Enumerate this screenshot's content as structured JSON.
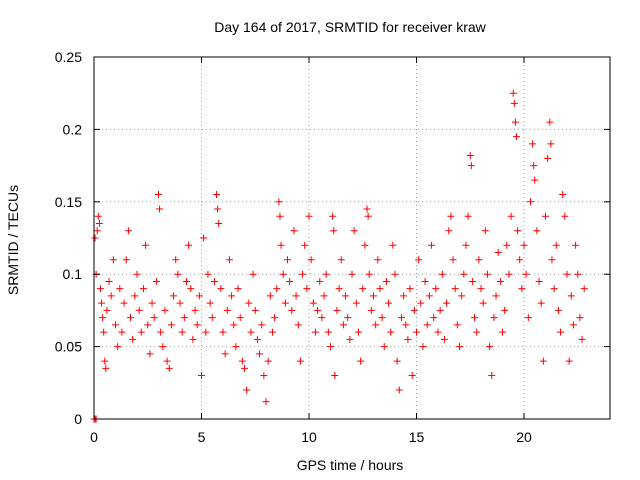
{
  "chart_data": {
    "type": "scatter",
    "title": "Day 164 of 2017, SRMTID for receiver kraw",
    "xlabel": "GPS time / hours",
    "ylabel": "SRMTID / TECUs",
    "xlim": [
      0,
      24
    ],
    "ylim": [
      0,
      0.25
    ],
    "xticks": [
      0,
      5,
      10,
      15,
      20
    ],
    "xtick_labels": [
      "0",
      "5",
      "10",
      "15",
      "20"
    ],
    "yticks": [
      0,
      0.05,
      0.1,
      0.15,
      0.2,
      0.25
    ],
    "ytick_labels": [
      "0",
      "0.05",
      "0.1",
      "0.15",
      "0.2",
      "0.25"
    ],
    "grid": true,
    "marker": "+",
    "color": "#ff0000",
    "series": [
      {
        "name": "SRMTID",
        "points": [
          [
            0.0,
            0.0
          ],
          [
            0.05,
            0.0
          ],
          [
            0.1,
            0.0
          ],
          [
            0.05,
            0.125
          ],
          [
            0.1,
            0.1
          ],
          [
            0.15,
            0.13
          ],
          [
            0.2,
            0.14
          ],
          [
            0.25,
            0.135
          ],
          [
            0.3,
            0.09
          ],
          [
            0.35,
            0.08
          ],
          [
            0.4,
            0.07
          ],
          [
            0.45,
            0.06
          ],
          [
            0.5,
            0.04
          ],
          [
            0.55,
            0.035
          ],
          [
            0.6,
            0.075
          ],
          [
            0.7,
            0.095
          ],
          [
            0.8,
            0.085
          ],
          [
            0.9,
            0.11
          ],
          [
            1.0,
            0.065
          ],
          [
            1.1,
            0.05
          ],
          [
            1.2,
            0.09
          ],
          [
            1.3,
            0.06
          ],
          [
            1.4,
            0.08
          ],
          [
            1.5,
            0.11
          ],
          [
            1.6,
            0.13
          ],
          [
            1.7,
            0.07
          ],
          [
            1.8,
            0.055
          ],
          [
            1.9,
            0.085
          ],
          [
            2.0,
            0.1
          ],
          [
            2.1,
            0.075
          ],
          [
            2.2,
            0.06
          ],
          [
            2.3,
            0.09
          ],
          [
            2.4,
            0.12
          ],
          [
            2.5,
            0.065
          ],
          [
            2.6,
            0.045
          ],
          [
            2.7,
            0.08
          ],
          [
            2.8,
            0.07
          ],
          [
            2.9,
            0.095
          ],
          [
            3.0,
            0.155
          ],
          [
            3.05,
            0.145
          ],
          [
            3.1,
            0.06
          ],
          [
            3.2,
            0.05
          ],
          [
            3.3,
            0.075
          ],
          [
            3.4,
            0.04
          ],
          [
            3.5,
            0.035
          ],
          [
            3.6,
            0.065
          ],
          [
            3.7,
            0.085
          ],
          [
            3.8,
            0.11
          ],
          [
            3.9,
            0.1
          ],
          [
            4.0,
            0.08
          ],
          [
            4.1,
            0.06
          ],
          [
            4.2,
            0.07
          ],
          [
            4.3,
            0.095
          ],
          [
            4.4,
            0.12
          ],
          [
            4.5,
            0.09
          ],
          [
            4.6,
            0.055
          ],
          [
            4.7,
            0.075
          ],
          [
            4.8,
            0.065
          ],
          [
            4.9,
            0.085
          ],
          [
            5.0,
            0.03
          ],
          [
            5.1,
            0.125
          ],
          [
            5.2,
            0.06
          ],
          [
            5.3,
            0.1
          ],
          [
            5.4,
            0.08
          ],
          [
            5.5,
            0.07
          ],
          [
            5.6,
            0.095
          ],
          [
            5.7,
            0.155
          ],
          [
            5.75,
            0.145
          ],
          [
            5.8,
            0.135
          ],
          [
            5.9,
            0.09
          ],
          [
            6.0,
            0.06
          ],
          [
            6.1,
            0.045
          ],
          [
            6.2,
            0.075
          ],
          [
            6.3,
            0.11
          ],
          [
            6.4,
            0.085
          ],
          [
            6.5,
            0.065
          ],
          [
            6.6,
            0.05
          ],
          [
            6.7,
            0.09
          ],
          [
            6.8,
            0.07
          ],
          [
            6.9,
            0.04
          ],
          [
            7.0,
            0.035
          ],
          [
            7.1,
            0.02
          ],
          [
            7.2,
            0.08
          ],
          [
            7.3,
            0.06
          ],
          [
            7.4,
            0.1
          ],
          [
            7.5,
            0.075
          ],
          [
            7.6,
            0.055
          ],
          [
            7.7,
            0.045
          ],
          [
            7.8,
            0.065
          ],
          [
            7.9,
            0.03
          ],
          [
            8.0,
            0.012
          ],
          [
            8.1,
            0.04
          ],
          [
            8.2,
            0.085
          ],
          [
            8.3,
            0.06
          ],
          [
            8.4,
            0.07
          ],
          [
            8.5,
            0.09
          ],
          [
            8.6,
            0.15
          ],
          [
            8.65,
            0.14
          ],
          [
            8.7,
            0.12
          ],
          [
            8.8,
            0.1
          ],
          [
            8.9,
            0.08
          ],
          [
            9.0,
            0.11
          ],
          [
            9.1,
            0.095
          ],
          [
            9.2,
            0.075
          ],
          [
            9.3,
            0.13
          ],
          [
            9.4,
            0.085
          ],
          [
            9.5,
            0.065
          ],
          [
            9.6,
            0.04
          ],
          [
            9.7,
            0.1
          ],
          [
            9.8,
            0.12
          ],
          [
            9.9,
            0.09
          ],
          [
            10.0,
            0.14
          ],
          [
            10.1,
            0.11
          ],
          [
            10.2,
            0.08
          ],
          [
            10.3,
            0.06
          ],
          [
            10.4,
            0.075
          ],
          [
            10.5,
            0.095
          ],
          [
            10.6,
            0.07
          ],
          [
            10.7,
            0.085
          ],
          [
            10.8,
            0.1
          ],
          [
            10.9,
            0.06
          ],
          [
            11.0,
            0.05
          ],
          [
            11.1,
            0.14
          ],
          [
            11.15,
            0.13
          ],
          [
            11.2,
            0.03
          ],
          [
            11.3,
            0.075
          ],
          [
            11.4,
            0.09
          ],
          [
            11.5,
            0.11
          ],
          [
            11.6,
            0.065
          ],
          [
            11.7,
            0.085
          ],
          [
            11.8,
            0.07
          ],
          [
            11.9,
            0.055
          ],
          [
            12.0,
            0.1
          ],
          [
            12.1,
            0.13
          ],
          [
            12.2,
            0.08
          ],
          [
            12.3,
            0.06
          ],
          [
            12.4,
            0.04
          ],
          [
            12.5,
            0.09
          ],
          [
            12.6,
            0.12
          ],
          [
            12.7,
            0.145
          ],
          [
            12.75,
            0.14
          ],
          [
            12.8,
            0.1
          ],
          [
            12.9,
            0.075
          ],
          [
            13.0,
            0.085
          ],
          [
            13.1,
            0.065
          ],
          [
            13.2,
            0.11
          ],
          [
            13.3,
            0.09
          ],
          [
            13.4,
            0.07
          ],
          [
            13.5,
            0.05
          ],
          [
            13.6,
            0.095
          ],
          [
            13.7,
            0.08
          ],
          [
            13.8,
            0.06
          ],
          [
            13.9,
            0.12
          ],
          [
            14.0,
            0.1
          ],
          [
            14.1,
            0.04
          ],
          [
            14.2,
            0.02
          ],
          [
            14.3,
            0.07
          ],
          [
            14.4,
            0.085
          ],
          [
            14.5,
            0.065
          ],
          [
            14.6,
            0.055
          ],
          [
            14.7,
            0.09
          ],
          [
            14.8,
            0.03
          ],
          [
            14.9,
            0.075
          ],
          [
            15.0,
            0.06
          ],
          [
            15.1,
            0.11
          ],
          [
            15.2,
            0.08
          ],
          [
            15.3,
            0.05
          ],
          [
            15.4,
            0.095
          ],
          [
            15.5,
            0.065
          ],
          [
            15.6,
            0.085
          ],
          [
            15.7,
            0.12
          ],
          [
            15.8,
            0.07
          ],
          [
            15.9,
            0.09
          ],
          [
            16.0,
            0.06
          ],
          [
            16.1,
            0.075
          ],
          [
            16.2,
            0.1
          ],
          [
            16.3,
            0.055
          ],
          [
            16.4,
            0.08
          ],
          [
            16.5,
            0.13
          ],
          [
            16.6,
            0.14
          ],
          [
            16.7,
            0.11
          ],
          [
            16.8,
            0.09
          ],
          [
            16.9,
            0.065
          ],
          [
            17.0,
            0.05
          ],
          [
            17.1,
            0.085
          ],
          [
            17.2,
            0.1
          ],
          [
            17.3,
            0.12
          ],
          [
            17.4,
            0.14
          ],
          [
            17.5,
            0.182
          ],
          [
            17.55,
            0.175
          ],
          [
            17.6,
            0.095
          ],
          [
            17.7,
            0.07
          ],
          [
            17.8,
            0.06
          ],
          [
            17.9,
            0.11
          ],
          [
            18.0,
            0.09
          ],
          [
            18.1,
            0.08
          ],
          [
            18.2,
            0.13
          ],
          [
            18.3,
            0.1
          ],
          [
            18.4,
            0.05
          ],
          [
            18.5,
            0.03
          ],
          [
            18.6,
            0.07
          ],
          [
            18.7,
            0.085
          ],
          [
            18.8,
            0.115
          ],
          [
            18.9,
            0.095
          ],
          [
            19.0,
            0.06
          ],
          [
            19.1,
            0.075
          ],
          [
            19.2,
            0.12
          ],
          [
            19.3,
            0.1
          ],
          [
            19.4,
            0.14
          ],
          [
            19.5,
            0.225
          ],
          [
            19.55,
            0.218
          ],
          [
            19.6,
            0.205
          ],
          [
            19.65,
            0.195
          ],
          [
            19.7,
            0.13
          ],
          [
            19.8,
            0.11
          ],
          [
            19.9,
            0.09
          ],
          [
            20.0,
            0.12
          ],
          [
            20.1,
            0.1
          ],
          [
            20.2,
            0.07
          ],
          [
            20.3,
            0.15
          ],
          [
            20.4,
            0.19
          ],
          [
            20.45,
            0.175
          ],
          [
            20.5,
            0.165
          ],
          [
            20.6,
            0.13
          ],
          [
            20.7,
            0.095
          ],
          [
            20.8,
            0.08
          ],
          [
            20.9,
            0.04
          ],
          [
            21.0,
            0.14
          ],
          [
            21.1,
            0.18
          ],
          [
            21.2,
            0.205
          ],
          [
            21.25,
            0.19
          ],
          [
            21.3,
            0.11
          ],
          [
            21.4,
            0.09
          ],
          [
            21.5,
            0.12
          ],
          [
            21.6,
            0.075
          ],
          [
            21.7,
            0.06
          ],
          [
            21.8,
            0.155
          ],
          [
            21.9,
            0.14
          ],
          [
            22.0,
            0.1
          ],
          [
            22.1,
            0.04
          ],
          [
            22.2,
            0.085
          ],
          [
            22.3,
            0.065
          ],
          [
            22.4,
            0.12
          ],
          [
            22.5,
            0.1
          ],
          [
            22.6,
            0.07
          ],
          [
            22.7,
            0.055
          ],
          [
            22.8,
            0.09
          ]
        ]
      }
    ]
  }
}
